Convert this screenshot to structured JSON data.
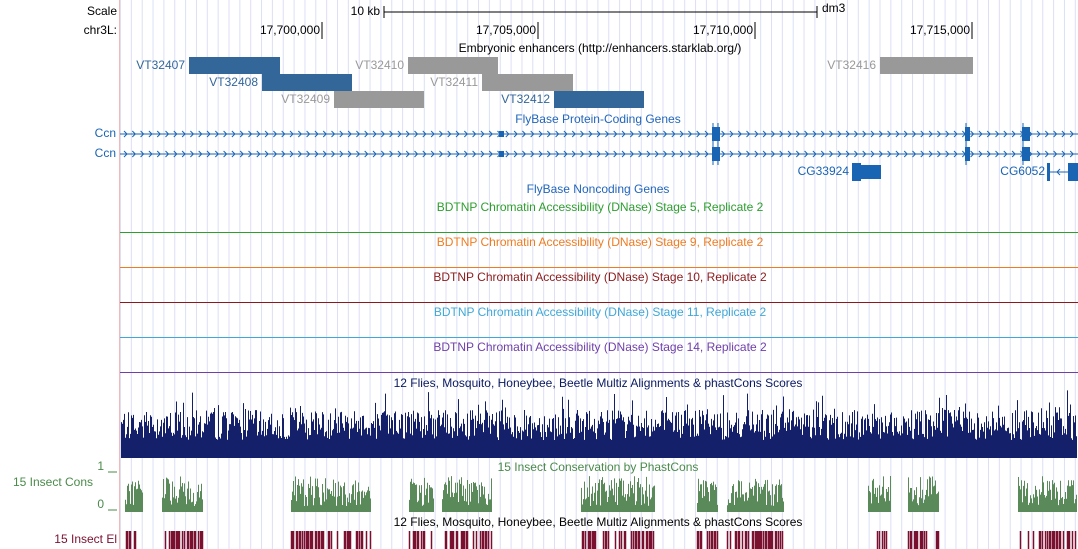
{
  "ruler": {
    "scale_label": "Scale",
    "chrom_label": "chr3L:",
    "scale_bar_label": "10 kb",
    "assembly": "dm3",
    "ticks": [
      "17,700,000",
      "17,705,000",
      "17,710,000",
      "17,715,000"
    ]
  },
  "tracks": {
    "enhancers": {
      "title": "Embryonic enhancers (http://enhancers.starklab.org/)",
      "items": [
        "VT32407",
        "VT32408",
        "VT32409",
        "VT32410",
        "VT32411",
        "VT32412",
        "VT32416"
      ]
    },
    "protein_coding_genes": {
      "title": "FlyBase Protein-Coding Genes",
      "items": [
        "Ccn",
        "Ccn",
        "CG33924",
        "CG6052"
      ]
    },
    "noncoding_genes": {
      "title": "FlyBase Noncoding Genes"
    },
    "dnase": [
      "BDTNP Chromatin Accessibility (DNase) Stage 5, Replicate 2",
      "BDTNP Chromatin Accessibility (DNase) Stage 9, Replicate 2",
      "BDTNP Chromatin Accessibility (DNase) Stage 10, Replicate 2",
      "BDTNP Chromatin Accessibility (DNase) Stage 11, Replicate 2",
      "BDTNP Chromatin Accessibility (DNase) Stage 14, Replicate 2"
    ],
    "multiz": {
      "title": "12 Flies, Mosquito, Honeybee, Beetle Multiz Alignments & phastCons Scores"
    },
    "phastcons": {
      "title": "15 Insect Conservation by PhastCons",
      "side_label": "15 Insect Cons",
      "axis_max": "1",
      "axis_min": "0"
    },
    "multiz_elements": {
      "title": "12 Flies, Mosquito, Honeybee, Beetle Multiz Alignments & phastCons Scores",
      "side_label": "15 Insect El"
    }
  }
}
